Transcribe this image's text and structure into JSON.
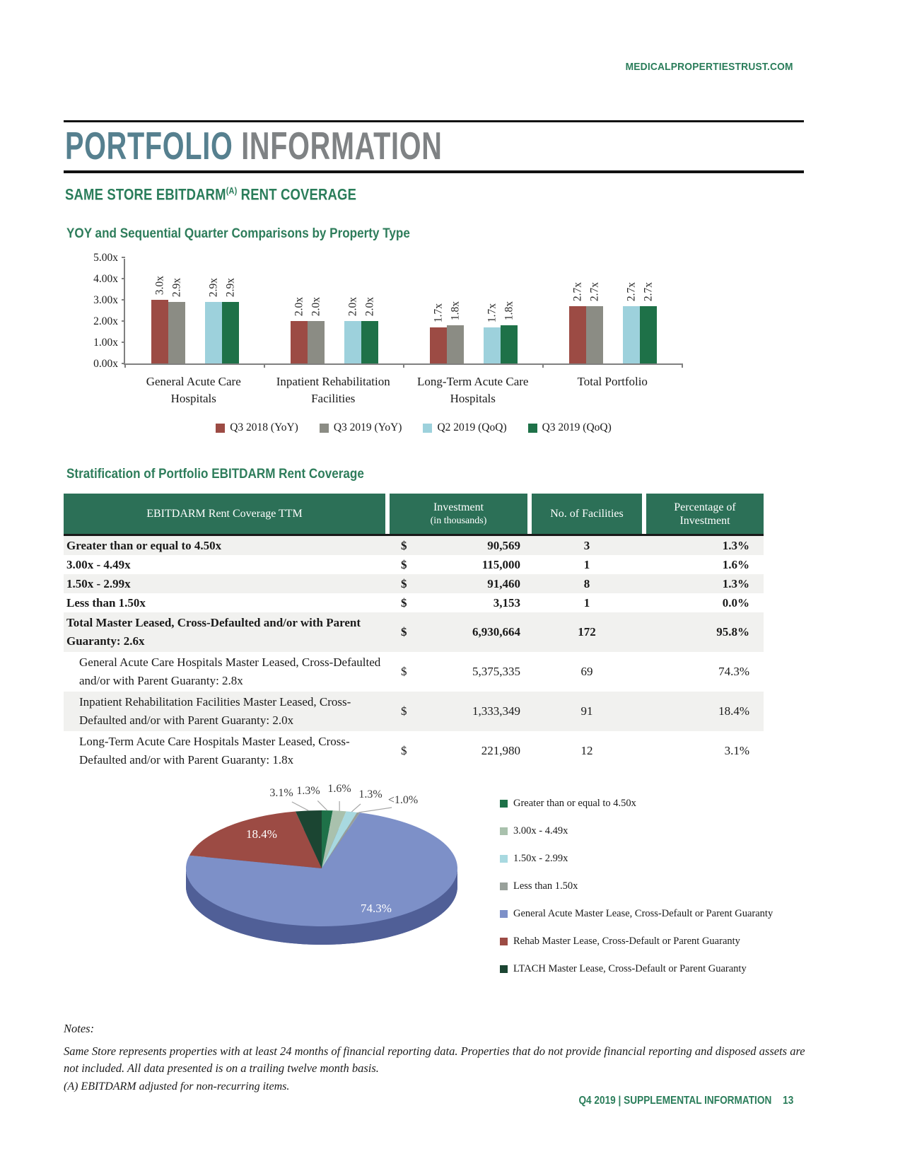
{
  "page": {
    "site_url": "MEDICALPROPERTIESTRUST.COM",
    "title": {
      "part1": "PORTFOLIO",
      "part2": " INFORMATION"
    },
    "heading": {
      "pre": "SAME STORE EBITDARM",
      "sup": "(A)",
      "post": " RENT COVERAGE"
    },
    "footer": {
      "text": "Q4 2019 | SUPPLEMENTAL INFORMATION",
      "page_number": "13"
    }
  },
  "sections": {
    "stratification_heading": "Stratification of Portfolio EBITDARM Rent Coverage"
  },
  "chart_data": [
    {
      "type": "bar",
      "title": "YOY and Sequential Quarter Comparisons by Property Type",
      "ylim": [
        0,
        5
      ],
      "y_ticks": [
        "0.00x",
        "1.00x",
        "2.00x",
        "3.00x",
        "4.00x",
        "5.00x"
      ],
      "grid": false,
      "legend_position": "bottom",
      "categories": [
        "General Acute Care\nHospitals",
        "Inpatient Rehabilitation\nFacilities",
        "Long-Term Acute Care\nHospitals",
        "Total Portfolio"
      ],
      "series": [
        {
          "name": "Q3 2018 (YoY)",
          "color": "#9C4B44",
          "values": [
            3.0,
            2.0,
            1.7,
            2.7
          ],
          "labels": [
            "3.0x",
            "2.0x",
            "1.7x",
            "2.7x"
          ]
        },
        {
          "name": "Q3 2019 (YoY)",
          "color": "#8B8C84",
          "values": [
            2.9,
            2.0,
            1.8,
            2.7
          ],
          "labels": [
            "2.9x",
            "2.0x",
            "1.8x",
            "2.7x"
          ]
        },
        {
          "name": "Q2 2019 (QoQ)",
          "color": "#9DD1DC",
          "values": [
            2.9,
            2.0,
            1.7,
            2.7
          ],
          "labels": [
            "2.9x",
            "2.0x",
            "1.7x",
            "2.7x"
          ]
        },
        {
          "name": "Q3 2019 (QoQ)",
          "color": "#1E7148",
          "values": [
            2.9,
            2.0,
            1.8,
            2.7
          ],
          "labels": [
            "2.9x",
            "2.0x",
            "1.8x",
            "2.7x"
          ]
        }
      ]
    },
    {
      "type": "pie",
      "style": "3d",
      "rim_color": "#505F97",
      "slices": [
        {
          "label": "Greater than or equal to 4.50x",
          "value": 1.3,
          "display": "1.3%",
          "color": "#1E7148"
        },
        {
          "label": "3.00x - 4.49x",
          "value": 1.6,
          "display": "1.6%",
          "color": "#A9C1AD"
        },
        {
          "label": "1.50x - 2.99x",
          "value": 1.3,
          "display": "1.3%",
          "color": "#A8D9E0"
        },
        {
          "label": "Less than 1.50x",
          "value": 0.0,
          "display": "<1.0%",
          "color": "#98A09A"
        },
        {
          "label": "General Acute Master Lease, Cross-Default or Parent Guaranty",
          "value": 74.3,
          "display": "74.3%",
          "color": "#7D90C8"
        },
        {
          "label": "Rehab Master Lease, Cross-Default or Parent Guaranty",
          "value": 18.4,
          "display": "18.4%",
          "color": "#9C4B44"
        },
        {
          "label": "LTACH Master Lease, Cross-Default or Parent Guaranty",
          "value": 3.1,
          "display": "3.1%",
          "color": "#1B4532"
        }
      ]
    }
  ],
  "table": {
    "headers": {
      "col1": "EBITDARM Rent Coverage TTM",
      "col2_line1": "Investment",
      "col2_line2": "(in thousands)",
      "col3": "No. of Facilities",
      "col4": "Percentage of Investment"
    },
    "currency_symbol": "$",
    "rows": [
      {
        "label": "Greater than or equal to 4.50x",
        "bold": true,
        "indent": false,
        "investment": "90,569",
        "facilities": "3",
        "percentage": "1.3%"
      },
      {
        "label": "3.00x - 4.49x",
        "bold": true,
        "indent": false,
        "investment": "115,000",
        "facilities": "1",
        "percentage": "1.6%"
      },
      {
        "label": "1.50x - 2.99x",
        "bold": true,
        "indent": false,
        "investment": "91,460",
        "facilities": "8",
        "percentage": "1.3%"
      },
      {
        "label": "Less than 1.50x",
        "bold": true,
        "indent": false,
        "investment": "3,153",
        "facilities": "1",
        "percentage": "0.0%"
      },
      {
        "label": "Total Master Leased, Cross-Defaulted and/or with Parent Guaranty: 2.6x",
        "bold": true,
        "indent": false,
        "investment": "6,930,664",
        "facilities": "172",
        "percentage": "95.8%"
      },
      {
        "label": "General Acute Care Hospitals Master Leased, Cross-Defaulted and/or with Parent Guaranty: 2.8x",
        "bold": false,
        "indent": true,
        "investment": "5,375,335",
        "facilities": "69",
        "percentage": "74.3%"
      },
      {
        "label": "Inpatient Rehabilitation Facilities Master Leased, Cross-Defaulted and/or with Parent Guaranty: 2.0x",
        "bold": false,
        "indent": true,
        "investment": "1,333,349",
        "facilities": "91",
        "percentage": "18.4%"
      },
      {
        "label": "Long-Term Acute Care Hospitals Master Leased, Cross-Defaulted and/or with Parent Guaranty: 1.8x",
        "bold": false,
        "indent": true,
        "investment": "221,980",
        "facilities": "12",
        "percentage": "3.1%"
      }
    ]
  },
  "notes": {
    "label": "Notes:",
    "body": "Same Store represents properties with at least 24 months of financial reporting data. Properties that do not provide financial reporting and disposed assets are not included. All data presented is on a trailing twelve month basis.",
    "footnote": "(A) EBITDARM adjusted for non-recurring items."
  }
}
